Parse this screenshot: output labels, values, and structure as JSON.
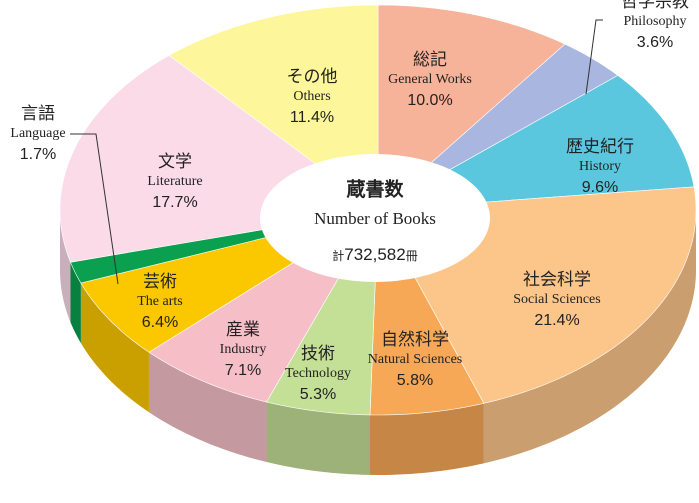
{
  "chart_data": {
    "type": "pie",
    "donut": true,
    "center_text": [
      "蔵書数",
      "Number of Books"
    ],
    "total_text": [
      "計",
      "732,582",
      "冊"
    ],
    "categories": [
      "総記",
      "哲学宗教",
      "歴史紀行",
      "社会科学",
      "自然科学",
      "技術",
      "産業",
      "芸術",
      "言語",
      "文学",
      "その他"
    ],
    "categories_en": [
      "General Works",
      "Philosophy",
      "History",
      "Social Sciences",
      "Natural Sciences",
      "Technology",
      "Industry",
      "The arts",
      "Language",
      "Literature",
      "Others"
    ],
    "values": [
      10.0,
      3.6,
      9.6,
      21.4,
      5.8,
      5.3,
      7.1,
      6.4,
      1.7,
      17.7,
      11.4
    ],
    "value_labels": [
      "10.0%",
      "3.6%",
      "9.6%",
      "21.4%",
      "5.8%",
      "5.3%",
      "7.1%",
      "6.4%",
      "1.7%",
      "17.7%",
      "11.4%"
    ],
    "colors": [
      "#f7b29a",
      "#a9b7e0",
      "#5bc7df",
      "#fcc68a",
      "#f7a857",
      "#c4df96",
      "#f6bfc8",
      "#fbc800",
      "#0aa050",
      "#fbdbe8",
      "#fdf69a"
    ]
  }
}
